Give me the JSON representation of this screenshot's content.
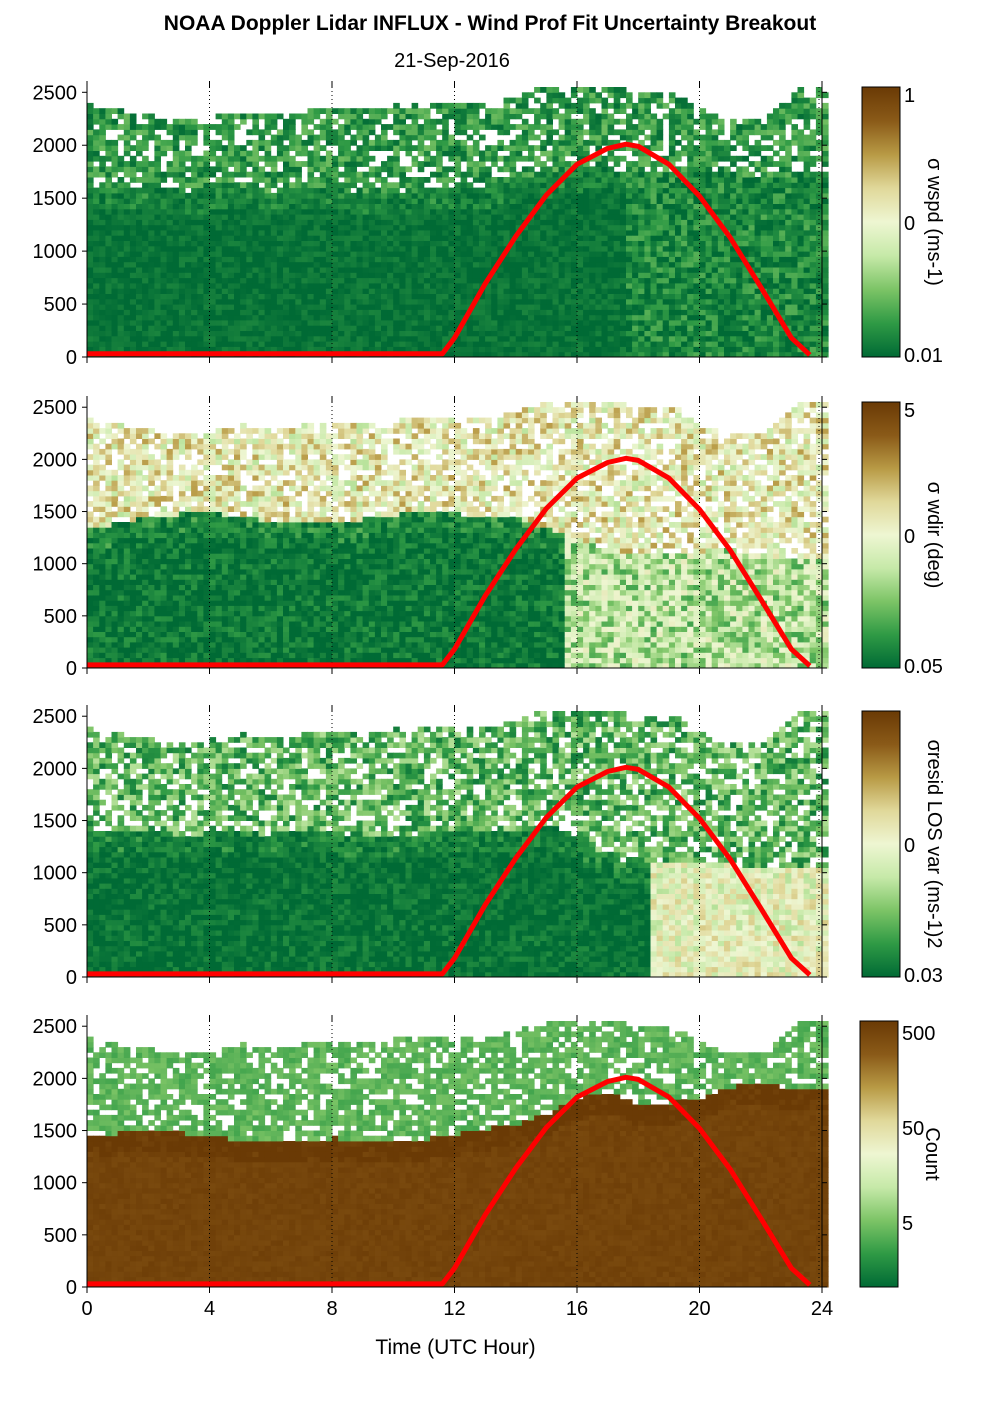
{
  "title": "NOAA Doppler Lidar INFLUX - Wind Prof Fit Uncertainty Breakout",
  "subtitle": "21-Sep-2016",
  "colors": {
    "curve": "#ff0000",
    "colormap": [
      "#006a35",
      "#2f9a45",
      "#7cc466",
      "#c6e9a8",
      "#eef6d2",
      "#e0d89a",
      "#b89a45",
      "#8a5a18",
      "#6a3a05"
    ]
  },
  "chart_data": [
    {
      "type": "heatmap",
      "title": "",
      "xlabel": "",
      "ylabel": "",
      "xlim": [
        0,
        24
      ],
      "ylim": [
        0,
        2550
      ],
      "xticks": [
        0,
        4,
        8,
        12,
        16,
        20,
        24
      ],
      "yticks": [
        0,
        500,
        1000,
        1500,
        2000,
        2500
      ],
      "grid": "vertical dotted at x = 4, 8, 12, 16, 20",
      "colorbar": {
        "label": "σ wspd (ms-1)",
        "ticks": [
          "1",
          "0",
          "0.01"
        ],
        "scale": "log"
      },
      "overlay_curve": {
        "color": "red",
        "points": [
          [
            0,
            30
          ],
          [
            11.6,
            30
          ],
          [
            12,
            180
          ],
          [
            13,
            690
          ],
          [
            14,
            1140
          ],
          [
            15,
            1530
          ],
          [
            16,
            1820
          ],
          [
            17,
            1970
          ],
          [
            17.6,
            2010
          ],
          [
            18,
            1990
          ],
          [
            19,
            1820
          ],
          [
            20,
            1520
          ],
          [
            21,
            1130
          ],
          [
            22,
            660
          ],
          [
            23,
            180
          ],
          [
            23.6,
            20
          ]
        ]
      },
      "approx_field": {
        "dense_top_m": [
          1550,
          1560,
          1580,
          1520,
          1550,
          1560,
          1540,
          1600,
          1560,
          1520,
          1500,
          1580,
          1550,
          1600,
          1650,
          1700,
          1750,
          1760,
          1700,
          1700,
          1720,
          1700,
          1680,
          1700
        ],
        "sparse_top_m": [
          2350,
          2300,
          2250,
          2200,
          2250,
          2300,
          2250,
          2300,
          2300,
          2300,
          2350,
          2350,
          2350,
          2350,
          2450,
          2550,
          2550,
          2550,
          2450,
          2500,
          2300,
          2200,
          2250,
          2500
        ],
        "transition_hour": 17.5,
        "level_below_before": 0.02,
        "level_below_after": 0.08,
        "level_above": 0.12,
        "noise": 0.1
      }
    },
    {
      "type": "heatmap",
      "title": "",
      "xlabel": "",
      "ylabel": "",
      "xlim": [
        0,
        24
      ],
      "ylim": [
        0,
        2550
      ],
      "xticks": [
        0,
        4,
        8,
        12,
        16,
        20,
        24
      ],
      "yticks": [
        0,
        500,
        1000,
        1500,
        2000,
        2500
      ],
      "grid": "vertical dotted at x = 4, 8, 12, 16, 20",
      "colorbar": {
        "label": "σ wdir (deg)",
        "ticks": [
          "5",
          "0",
          "0.05"
        ],
        "scale": "log"
      },
      "overlay_curve": {
        "color": "red",
        "points": [
          [
            0,
            30
          ],
          [
            11.6,
            30
          ],
          [
            12,
            180
          ],
          [
            13,
            690
          ],
          [
            14,
            1140
          ],
          [
            15,
            1530
          ],
          [
            16,
            1820
          ],
          [
            17,
            1970
          ],
          [
            17.6,
            2010
          ],
          [
            18,
            1990
          ],
          [
            19,
            1820
          ],
          [
            20,
            1520
          ],
          [
            21,
            1130
          ],
          [
            22,
            660
          ],
          [
            23,
            180
          ],
          [
            23.6,
            20
          ]
        ]
      },
      "approx_field": {
        "dense_top_m": [
          1300,
          1380,
          1420,
          1450,
          1460,
          1420,
          1380,
          1350,
          1350,
          1400,
          1450,
          1450,
          1450,
          1420,
          1400,
          1300,
          1200,
          1100,
          1050,
          1050,
          1100,
          1100,
          1050,
          1000
        ],
        "sparse_top_m": [
          2350,
          2300,
          2250,
          2200,
          2250,
          2300,
          2250,
          2300,
          2300,
          2300,
          2350,
          2350,
          2350,
          2350,
          2450,
          2550,
          2550,
          2550,
          2450,
          2500,
          2300,
          2200,
          2250,
          2500
        ],
        "transition_hour": 15.5,
        "level_below_before": 0.03,
        "level_below_after": 0.35,
        "level_above": 0.55,
        "noise": 0.18
      }
    },
    {
      "type": "heatmap",
      "title": "",
      "xlabel": "",
      "ylabel": "",
      "xlim": [
        0,
        24
      ],
      "ylim": [
        0,
        2550
      ],
      "xticks": [
        0,
        4,
        8,
        12,
        16,
        20,
        24
      ],
      "yticks": [
        0,
        500,
        1000,
        1500,
        2000,
        2500
      ],
      "grid": "vertical dotted at x = 4, 8, 12, 16, 20",
      "colorbar": {
        "label": "σresid LOS var (ms-1)2",
        "ticks": [
          "0",
          "0.03"
        ],
        "scale": "log"
      },
      "overlay_curve": {
        "color": "red",
        "points": [
          [
            0,
            30
          ],
          [
            11.6,
            30
          ],
          [
            12,
            180
          ],
          [
            13,
            690
          ],
          [
            14,
            1140
          ],
          [
            15,
            1530
          ],
          [
            16,
            1820
          ],
          [
            17,
            1970
          ],
          [
            17.6,
            2010
          ],
          [
            18,
            1990
          ],
          [
            19,
            1820
          ],
          [
            20,
            1520
          ],
          [
            21,
            1130
          ],
          [
            22,
            660
          ],
          [
            23,
            180
          ],
          [
            23.6,
            20
          ]
        ]
      },
      "approx_field": {
        "dense_top_m": [
          1350,
          1350,
          1380,
          1340,
          1350,
          1360,
          1340,
          1380,
          1350,
          1320,
          1300,
          1350,
          1350,
          1380,
          1400,
          1450,
          1300,
          1100,
          1050,
          1050,
          1050,
          1050,
          1000,
          1000
        ],
        "sparse_top_m": [
          2350,
          2300,
          2250,
          2200,
          2250,
          2300,
          2250,
          2300,
          2300,
          2300,
          2350,
          2350,
          2350,
          2350,
          2450,
          2550,
          2550,
          2550,
          2450,
          2500,
          2300,
          2200,
          2250,
          2500
        ],
        "transition_hour": 18.2,
        "level_below_before": 0.02,
        "level_below_after": 0.5,
        "level_above": 0.2,
        "noise": 0.14
      }
    },
    {
      "type": "heatmap",
      "title": "",
      "xlabel": "Time (UTC Hour)",
      "ylabel": "",
      "xlim": [
        0,
        24
      ],
      "ylim": [
        0,
        2550
      ],
      "xticks": [
        0,
        4,
        8,
        12,
        16,
        20,
        24
      ],
      "yticks": [
        0,
        500,
        1000,
        1500,
        2000,
        2500
      ],
      "grid": "vertical dotted at x = 4, 8, 12, 16, 20",
      "colorbar": {
        "label": "Count",
        "ticks": [
          "500",
          "50",
          "5"
        ],
        "scale": "log"
      },
      "overlay_curve": {
        "color": "red",
        "points": [
          [
            0,
            30
          ],
          [
            11.6,
            30
          ],
          [
            12,
            180
          ],
          [
            13,
            690
          ],
          [
            14,
            1140
          ],
          [
            15,
            1530
          ],
          [
            16,
            1820
          ],
          [
            17,
            1970
          ],
          [
            17.6,
            2010
          ],
          [
            18,
            1990
          ],
          [
            19,
            1820
          ],
          [
            20,
            1520
          ],
          [
            21,
            1130
          ],
          [
            22,
            660
          ],
          [
            23,
            180
          ],
          [
            23.6,
            20
          ]
        ]
      },
      "approx_field": {
        "dense_top_m": [
          1400,
          1450,
          1480,
          1450,
          1420,
          1380,
          1350,
          1380,
          1400,
          1380,
          1350,
          1400,
          1450,
          1500,
          1550,
          1650,
          1800,
          1850,
          1700,
          1750,
          1800,
          1900,
          1950,
          1850
        ],
        "sparse_top_m": [
          2350,
          2300,
          2250,
          2200,
          2250,
          2300,
          2250,
          2300,
          2300,
          2300,
          2350,
          2350,
          2350,
          2350,
          2450,
          2550,
          2550,
          2550,
          2450,
          2500,
          2300,
          2200,
          2250,
          2500
        ],
        "transition_hour": 24,
        "level_below_before": 0.96,
        "level_below_after": 0.96,
        "level_above": 0.2,
        "noise": 0.04
      }
    }
  ]
}
